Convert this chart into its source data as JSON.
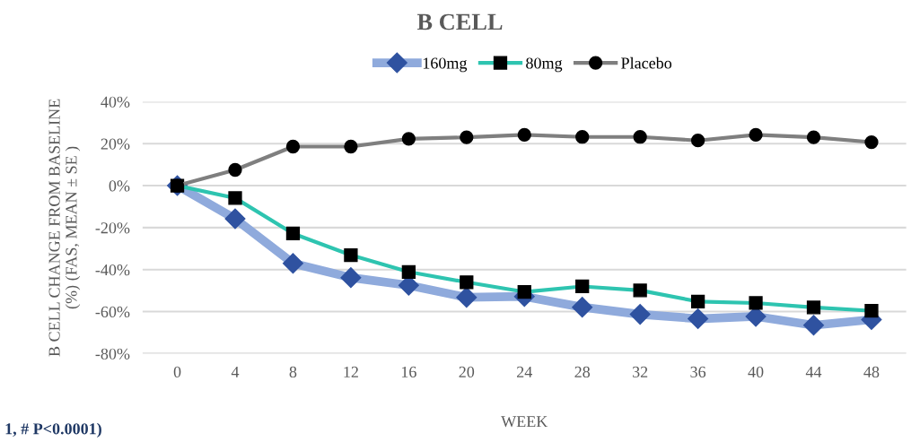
{
  "chart_data": {
    "type": "line",
    "title": "B CELL",
    "xlabel": "WEEK",
    "ylabel": "B CELL CHANGE FROM BASELINE\n(%) (FAS, MEAN ± SE )",
    "categories": [
      "0",
      "4",
      "8",
      "12",
      "16",
      "20",
      "24",
      "28",
      "32",
      "36",
      "40",
      "44",
      "48"
    ],
    "series": [
      {
        "name": "160mg",
        "color": "#8faadc",
        "marker": "diamond",
        "values": [
          0,
          -15.8,
          -37,
          -43.8,
          -47.5,
          -53.2,
          -52.8,
          -57.9,
          -61.3,
          -63.4,
          -62.3,
          -66.5,
          -63.8
        ]
      },
      {
        "name": "80mg",
        "color": "#2ec4b0",
        "marker": "square",
        "values": [
          0,
          -5.9,
          -22.8,
          -33.1,
          -41.1,
          -46,
          -50.6,
          -48,
          -49.9,
          -55.2,
          -55.9,
          -58,
          -59.6
        ]
      },
      {
        "name": "Placebo",
        "color": "#7f7f7f",
        "marker": "circle",
        "values": [
          0,
          7.5,
          18.6,
          18.6,
          22.3,
          23,
          24.2,
          23.2,
          23.2,
          21.5,
          24.2,
          23,
          20.7
        ]
      }
    ],
    "ylim": [
      -80,
      40
    ],
    "yticks": [
      {
        "value": -80,
        "label": "-80%"
      },
      {
        "value": -60,
        "label": "-60%"
      },
      {
        "value": -40,
        "label": "-40%"
      },
      {
        "value": -20,
        "label": "-20%"
      },
      {
        "value": 0,
        "label": "0%"
      },
      {
        "value": 20,
        "label": "20%"
      },
      {
        "value": 40,
        "label": "40%"
      }
    ],
    "grid": "y",
    "legend": "top",
    "annotations": [
      "1, # P<0.0001)"
    ]
  }
}
